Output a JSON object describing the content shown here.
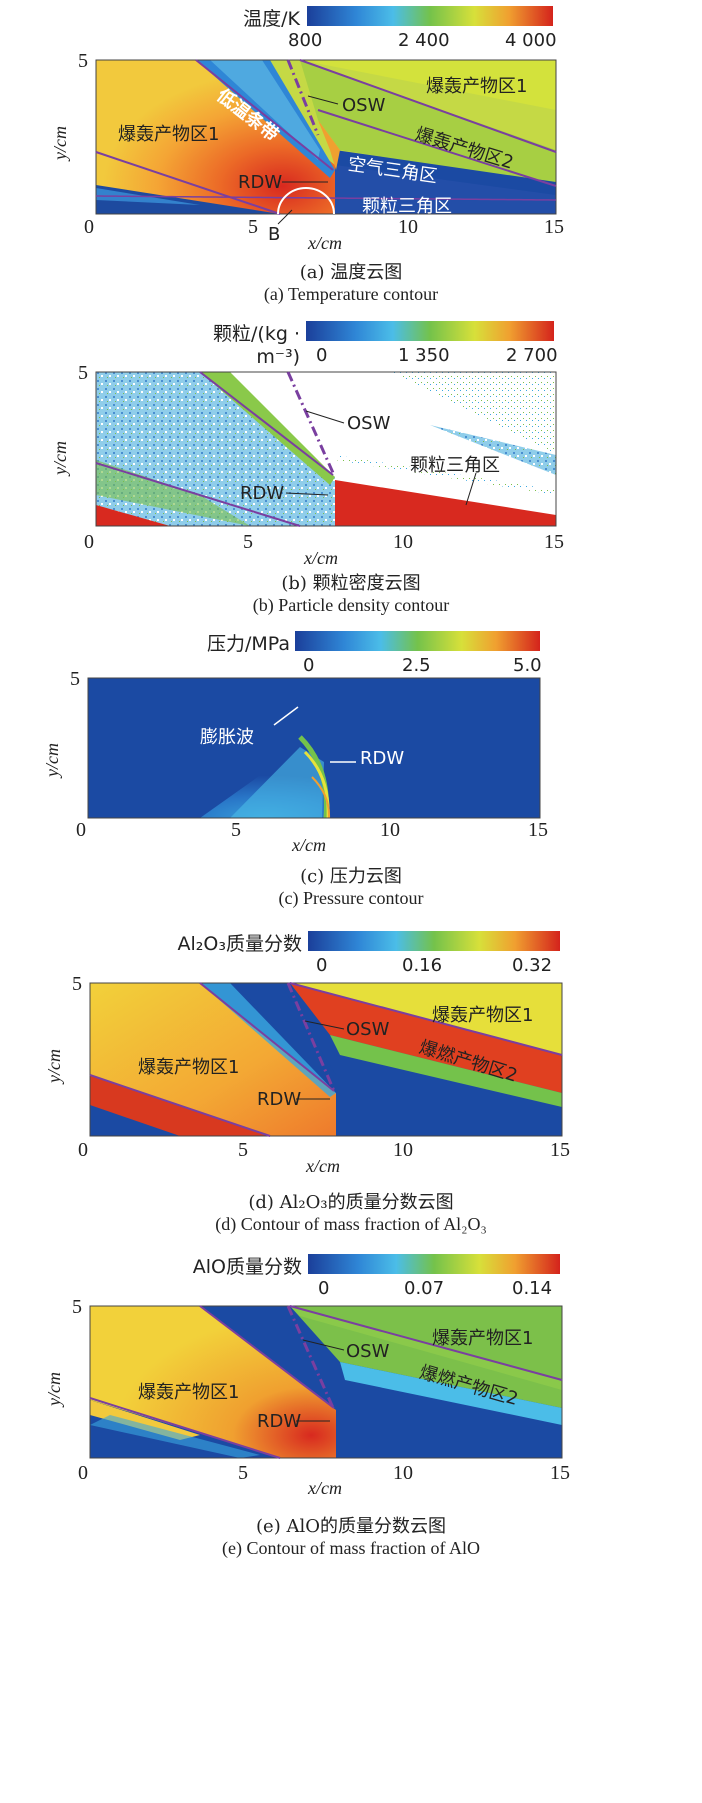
{
  "panels": [
    {
      "id": "a",
      "colorbar": {
        "title": "温度/K",
        "ticks": [
          "800",
          "2 400",
          "4 000"
        ]
      },
      "axes": {
        "xlabel": "x/cm",
        "ylabel": "y/cm",
        "xticks": [
          "0",
          "5",
          "10",
          "15"
        ],
        "yticks": [
          "5"
        ]
      },
      "labels": {
        "low_temp_band": "低温条带",
        "osw": "OSW",
        "products_1_top": "爆轰产物区1",
        "products_2": "爆轰产物区2",
        "products_1_left": "爆轰产物区1",
        "rdw": "RDW",
        "air_triangle": "空气三角区",
        "particle_triangle": "颗粒三角区",
        "b_marker": "B"
      },
      "caption_zh": "(a) 温度云图",
      "caption_en": "(a) Temperature contour"
    },
    {
      "id": "b",
      "colorbar": {
        "title": "颗粒/(kg · m⁻³)",
        "ticks": [
          "0",
          "1 350",
          "2 700"
        ]
      },
      "axes": {
        "xlabel": "x/cm",
        "ylabel": "y/cm",
        "xticks": [
          "0",
          "5",
          "10",
          "15"
        ],
        "yticks": [
          "5"
        ]
      },
      "labels": {
        "osw": "OSW",
        "particle_triangle": "颗粒三角区",
        "rdw": "RDW"
      },
      "caption_zh": "(b) 颗粒密度云图",
      "caption_en": "(b) Particle density contour"
    },
    {
      "id": "c",
      "colorbar": {
        "title": "压力/MPa",
        "ticks": [
          "0",
          "2.5",
          "5.0"
        ]
      },
      "axes": {
        "xlabel": "x/cm",
        "ylabel": "y/cm",
        "xticks": [
          "0",
          "5",
          "10",
          "15"
        ],
        "yticks": [
          "5"
        ]
      },
      "labels": {
        "expansion_wave": "膨胀波",
        "rdw": "RDW"
      },
      "caption_zh": "(c) 压力云图",
      "caption_en": "(c) Pressure contour"
    },
    {
      "id": "d",
      "colorbar": {
        "title": "Al₂O₃质量分数",
        "ticks": [
          "0",
          "0.16",
          "0.32"
        ]
      },
      "axes": {
        "xlabel": "x/cm",
        "ylabel": "y/cm",
        "xticks": [
          "0",
          "5",
          "10",
          "15"
        ],
        "yticks": [
          "5"
        ]
      },
      "labels": {
        "products_1_top": "爆轰产物区1",
        "osw": "OSW",
        "combustion_2": "爆燃产物区2",
        "products_1_left": "爆轰产物区1",
        "rdw": "RDW"
      },
      "caption_zh": "(d) Al₂O₃的质量分数云图",
      "caption_en": "(d) Contour of mass fraction of Al₂O₃"
    },
    {
      "id": "e",
      "colorbar": {
        "title": "AlO质量分数",
        "ticks": [
          "0",
          "0.07",
          "0.14"
        ]
      },
      "axes": {
        "xlabel": "x/cm",
        "ylabel": "y/cm",
        "xticks": [
          "0",
          "5",
          "10",
          "15"
        ],
        "yticks": [
          "5"
        ]
      },
      "labels": {
        "products_1_top": "爆轰产物区1",
        "osw": "OSW",
        "combustion_2": "爆燃产物区2",
        "products_1_left": "爆轰产物区1",
        "rdw": "RDW"
      },
      "caption_zh": "(e) AlO的质量分数云图",
      "caption_en": "(e) Contour of mass fraction of AlO"
    }
  ],
  "colors": {
    "deep_blue": "#1b4aa3",
    "light_blue": "#3aa7e0",
    "green": "#7cc04a",
    "yellow": "#e6e23a",
    "orange": "#f0a030",
    "red": "#d8291f",
    "purple": "#7a3fa0"
  }
}
